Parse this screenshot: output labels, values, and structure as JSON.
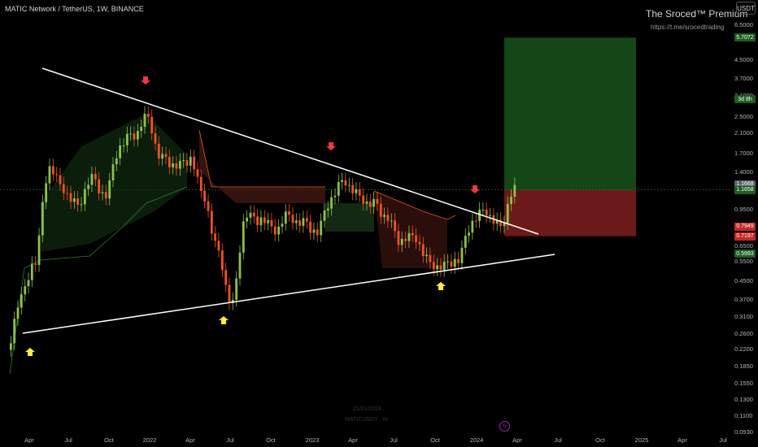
{
  "header": {
    "symbol_line": "MATIC Network / TetherUS, 1W, BINANCE"
  },
  "brand": {
    "title": "The Sroced™ Premium",
    "url": "https://t.me/srocedtrading"
  },
  "currency_button": "USDT",
  "watermark": {
    "line1": "21/01/2024",
    "line2": "MATICUSDT · W"
  },
  "y_axis": {
    "scale": "log",
    "ticks": [
      "6.5000",
      "4.5000",
      "3.7000",
      "3.1000",
      "2.5000",
      "2.1000",
      "1.7000",
      "1.4000",
      "0.9500",
      "0.6500",
      "0.5500",
      "0.4500",
      "0.3700",
      "0.3100",
      "0.2600",
      "0.2200",
      "0.1850",
      "0.1550",
      "0.1300",
      "0.1100",
      "0.0930"
    ]
  },
  "x_axis": {
    "ticks": [
      "Apr",
      "Jul",
      "Oct",
      "2022",
      "Apr",
      "Jul",
      "Oct",
      "2023",
      "Apr",
      "Jul",
      "Oct",
      "2024",
      "Apr",
      "Jul",
      "Oct",
      "2025",
      "Apr",
      "Jul"
    ]
  },
  "price_badges": [
    {
      "label": "5.7072",
      "color": "#1b5e20"
    },
    {
      "label": "1.1668",
      "color": "#5d606b"
    },
    {
      "label": "1.1658",
      "color": "#1b5e20"
    },
    {
      "label": "3d 8h",
      "color": "#1b5e20"
    },
    {
      "label": "0.7949",
      "color": "#c62828"
    },
    {
      "label": "0.7197",
      "color": "#c62828"
    },
    {
      "label": "0.5993",
      "color": "#1b5e20"
    }
  ],
  "colors": {
    "up": "#8bc34a",
    "down": "#f4511e",
    "arrow_down": "#f23645",
    "arrow_up": "#ffeb3b",
    "trendline": "#ffffff",
    "target_zone": "#1b5e20",
    "stop_zone": "#7f1d1d"
  },
  "chart_data": {
    "type": "candlestick",
    "title": "MATIC Network / TetherUS, 1W, BINANCE",
    "y_scale": "log",
    "ylim": [
      0.093,
      6.5
    ],
    "trendlines": [
      {
        "name": "upper",
        "from": [
          "2021-03",
          4.2
        ],
        "to": [
          "2024-06",
          0.78
        ]
      },
      {
        "name": "lower",
        "from": [
          "2021-03",
          0.26
        ],
        "to": [
          "2024-06",
          0.62
        ]
      }
    ],
    "position": {
      "entry": 1.1658,
      "target": 5.7072,
      "stop": 0.7197
    },
    "markers": [
      {
        "type": "sell",
        "date": "2021-12",
        "price": 2.9
      },
      {
        "type": "buy",
        "date": "2022-06",
        "price": 0.32
      },
      {
        "type": "sell",
        "date": "2023-02",
        "price": 1.55
      },
      {
        "type": "buy",
        "date": "2023-10",
        "price": 0.5
      },
      {
        "type": "sell",
        "date": "2024-01",
        "price": 1.05
      },
      {
        "type": "buy",
        "date": "2021-03",
        "price": 0.22
      }
    ],
    "series_monthly_close": {
      "dates": [
        "2021-03",
        "2021-04",
        "2021-05",
        "2021-06",
        "2021-07",
        "2021-08",
        "2021-09",
        "2021-10",
        "2021-11",
        "2021-12",
        "2022-01",
        "2022-02",
        "2022-03",
        "2022-04",
        "2022-05",
        "2022-06",
        "2022-07",
        "2022-08",
        "2022-09",
        "2022-10",
        "2022-11",
        "2022-12",
        "2023-01",
        "2023-02",
        "2023-03",
        "2023-04",
        "2023-05",
        "2023-06",
        "2023-07",
        "2023-08",
        "2023-09",
        "2023-10",
        "2023-11",
        "2023-12",
        "2024-01",
        "2024-02"
      ],
      "values": [
        0.37,
        0.55,
        1.45,
        1.2,
        1.0,
        1.3,
        1.1,
        1.8,
        2.1,
        2.5,
        1.6,
        1.5,
        1.6,
        1.1,
        0.62,
        0.35,
        0.9,
        0.85,
        0.78,
        0.9,
        0.82,
        0.75,
        1.05,
        1.3,
        1.1,
        1.0,
        0.87,
        0.68,
        0.72,
        0.55,
        0.52,
        0.56,
        0.82,
        0.95,
        0.8,
        1.16
      ]
    }
  }
}
